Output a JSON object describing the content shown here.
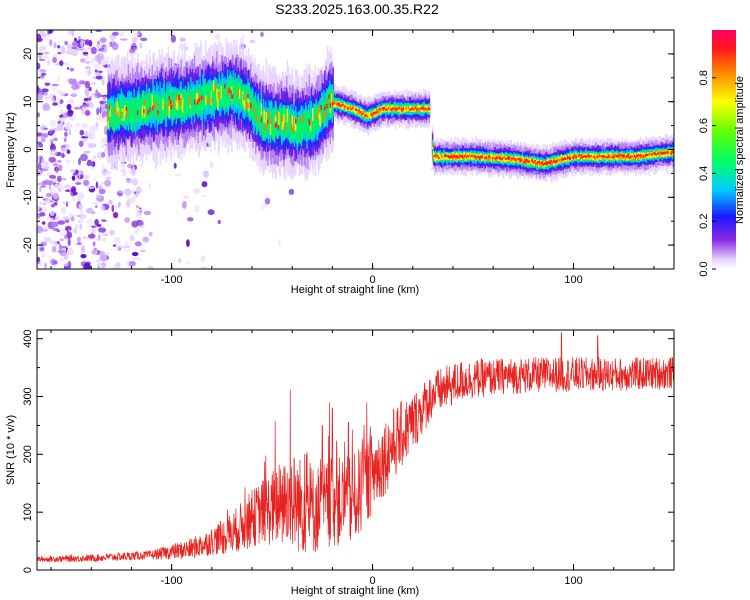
{
  "title": "S233.2025.163.00.35.R22",
  "chart_data": [
    {
      "type": "heatmap",
      "xlabel": "Height of straight line (km)",
      "ylabel": "Frequency (Hz)",
      "xlim": [
        -167,
        150
      ],
      "ylim": [
        -25,
        25
      ],
      "xticks": [
        -100,
        0,
        100
      ],
      "yticks": [
        -20,
        -10,
        0,
        10,
        20
      ],
      "colorbar": {
        "label": "Normalized spectral amplitude",
        "range": [
          0,
          1
        ],
        "ticks": [
          0.0,
          0.2,
          0.4,
          0.6,
          0.8
        ]
      },
      "ridge": [
        {
          "x": -130,
          "y": 7.5
        },
        {
          "x": -110,
          "y": 9
        },
        {
          "x": -90,
          "y": 10
        },
        {
          "x": -70,
          "y": 12
        },
        {
          "x": -62,
          "y": 10
        },
        {
          "x": -55,
          "y": 6
        },
        {
          "x": -45,
          "y": 5.5
        },
        {
          "x": -35,
          "y": 5
        },
        {
          "x": -28,
          "y": 6
        },
        {
          "x": -22,
          "y": 10
        },
        {
          "x": -10,
          "y": 8.5
        },
        {
          "x": -3,
          "y": 7
        },
        {
          "x": 5,
          "y": 8.5
        },
        {
          "x": 28,
          "y": 8.5
        },
        {
          "x": 30,
          "y": -1.5
        },
        {
          "x": 50,
          "y": -1.5
        },
        {
          "x": 70,
          "y": -2
        },
        {
          "x": 85,
          "y": -3
        },
        {
          "x": 100,
          "y": -1.5
        },
        {
          "x": 130,
          "y": -1.5
        },
        {
          "x": 150,
          "y": -0.5
        }
      ]
    },
    {
      "type": "line",
      "xlabel": "Height of straight line (km)",
      "ylabel": "SNR (10 * v/v)",
      "xlim": [
        -167,
        150
      ],
      "ylim": [
        0,
        415
      ],
      "xticks": [
        -100,
        0,
        100
      ],
      "yticks": [
        0,
        100,
        200,
        300,
        400
      ],
      "color": "#e8221f",
      "trend": [
        {
          "x": -167,
          "y": 18
        },
        {
          "x": -140,
          "y": 20
        },
        {
          "x": -110,
          "y": 25
        },
        {
          "x": -90,
          "y": 35
        },
        {
          "x": -70,
          "y": 60
        },
        {
          "x": -55,
          "y": 95
        },
        {
          "x": -40,
          "y": 110
        },
        {
          "x": -30,
          "y": 95
        },
        {
          "x": -20,
          "y": 110
        },
        {
          "x": -10,
          "y": 110
        },
        {
          "x": 0,
          "y": 160
        },
        {
          "x": 10,
          "y": 210
        },
        {
          "x": 20,
          "y": 250
        },
        {
          "x": 30,
          "y": 300
        },
        {
          "x": 45,
          "y": 325
        },
        {
          "x": 65,
          "y": 332
        },
        {
          "x": 90,
          "y": 335
        },
        {
          "x": 120,
          "y": 335
        },
        {
          "x": 150,
          "y": 338
        }
      ],
      "noise": [
        {
          "x": -167,
          "y": 6
        },
        {
          "x": -110,
          "y": 10
        },
        {
          "x": -80,
          "y": 30
        },
        {
          "x": -55,
          "y": 70
        },
        {
          "x": -40,
          "y": 110
        },
        {
          "x": -25,
          "y": 95
        },
        {
          "x": -10,
          "y": 100
        },
        {
          "x": 10,
          "y": 80
        },
        {
          "x": 30,
          "y": 50
        },
        {
          "x": 60,
          "y": 40
        },
        {
          "x": 150,
          "y": 35
        }
      ],
      "peaks": [
        {
          "x": -41,
          "y": 312
        },
        {
          "x": -33,
          "y": 200
        },
        {
          "x": -25,
          "y": 250
        },
        {
          "x": -20,
          "y": 280
        },
        {
          "x": -12,
          "y": 255
        },
        {
          "x": 94,
          "y": 410
        },
        {
          "x": 112,
          "y": 405
        }
      ]
    }
  ]
}
